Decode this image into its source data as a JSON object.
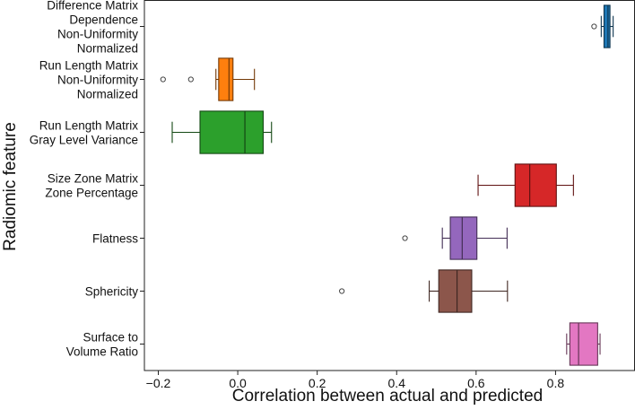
{
  "chart_data": {
    "type": "boxplot",
    "orientation": "horizontal",
    "title": "",
    "xlabel": "Correlation between actual and predicted",
    "ylabel": "Radiomic feature",
    "xlim": [
      -0.235,
      1.0
    ],
    "xticks": [
      -0.2,
      0.0,
      0.2,
      0.4,
      0.6,
      0.8
    ],
    "xtick_labels": [
      "−0.2",
      "0.0",
      "0.2",
      "0.4",
      "0.6",
      "0.8"
    ],
    "categories": [
      {
        "label_lines": [
          "Difference Matrix",
          "Dependence",
          "Non-Uniformity",
          "Normalized"
        ],
        "color": "#1f77b4",
        "whisker_low": 0.915,
        "q1": 0.922,
        "median": 0.932,
        "q3": 0.937,
        "whisker_high": 0.945,
        "outliers": [
          0.897
        ]
      },
      {
        "label_lines": [
          "Run Length Matrix",
          "Non-Uniformity",
          "Normalized"
        ],
        "color": "#ff7f0e",
        "whisker_low": -0.055,
        "q1": -0.048,
        "median": -0.022,
        "q3": -0.012,
        "whisker_high": 0.042,
        "outliers": [
          -0.188,
          -0.118
        ]
      },
      {
        "label_lines": [
          "Run Length Matrix",
          "Gray Level Variance"
        ],
        "color": "#2ca02c",
        "whisker_low": -0.165,
        "q1": -0.095,
        "median": 0.018,
        "q3": 0.064,
        "whisker_high": 0.085,
        "outliers": []
      },
      {
        "label_lines": [
          "Size Zone Matrix",
          "Zone Percentage"
        ],
        "color": "#d62728",
        "whisker_low": 0.605,
        "q1": 0.698,
        "median": 0.735,
        "q3": 0.802,
        "whisker_high": 0.845,
        "outliers": []
      },
      {
        "label_lines": [
          "Flatness"
        ],
        "color": "#9467bd",
        "whisker_low": 0.515,
        "q1": 0.535,
        "median": 0.565,
        "q3": 0.602,
        "whisker_high": 0.678,
        "outliers": [
          0.421
        ]
      },
      {
        "label_lines": [
          "Sphericity"
        ],
        "color": "#8c564b",
        "whisker_low": 0.482,
        "q1": 0.506,
        "median": 0.552,
        "q3": 0.589,
        "whisker_high": 0.679,
        "outliers": [
          0.262
        ]
      },
      {
        "label_lines": [
          "Surface to",
          "Volume Ratio"
        ],
        "color": "#e377c2",
        "whisker_low": 0.828,
        "q1": 0.836,
        "median": 0.858,
        "q3": 0.906,
        "whisker_high": 0.912,
        "outliers": []
      }
    ]
  }
}
